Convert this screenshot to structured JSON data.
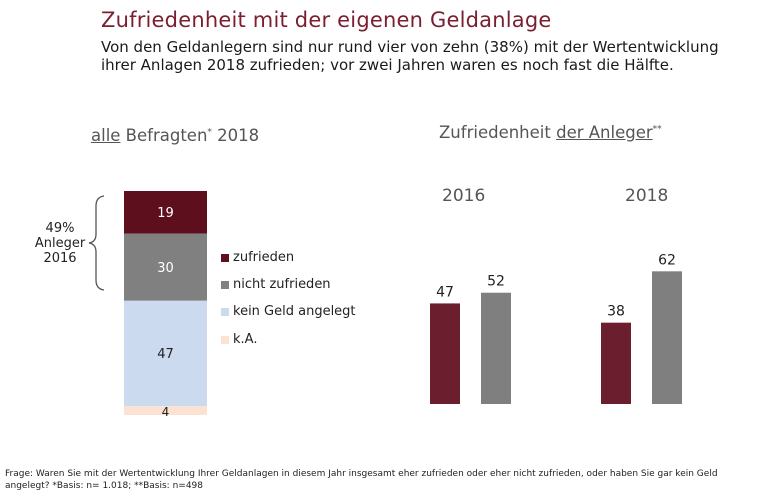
{
  "title": "Zufriedenheit mit der eigenen Geldanlage",
  "subtitle": "Von den Geldanlegern sind nur rund vier von zehn (38%) mit der Wertentwicklung ihrer Anlagen 2018 zufrieden; vor zwei Jahren waren es noch fast die Hälfte.",
  "left_header": {
    "underlined": "alle",
    "text": " Befragten",
    "mark": "*",
    "year": " 2018"
  },
  "right_header": {
    "text": "Zufriedenheit ",
    "underlined": "der Anleger",
    "mark": "**"
  },
  "anleger_note": "49% Anleger 2016",
  "footnote": "Frage: Waren Sie mit der Wertentwicklung Ihrer Geldanlagen in diesem Jahr insgesamt eher zufrieden oder eher nicht zufrieden, oder haben Sie gar kein Geld angelegt? *Basis: n= 1.018; **Basis: n=498",
  "colors": {
    "zufrieden": "#5e0f1e",
    "nicht_zufrieden": "#808080",
    "kein_geld": "#ccdaf0",
    "ka": "#fbe2d3",
    "grouped_zufrieden": "#6b1f2e",
    "grouped_nicht": "#7f7f7f",
    "title": "#7a1e30"
  },
  "chart_data": [
    {
      "type": "bar",
      "stacked": true,
      "categories": [
        "2018"
      ],
      "series": [
        {
          "name": "zufrieden",
          "values": [
            19
          ]
        },
        {
          "name": "nicht zufrieden",
          "values": [
            30
          ]
        },
        {
          "name": "kein Geld angelegt",
          "values": [
            47
          ]
        },
        {
          "name": "k.A.",
          "values": [
            4
          ]
        }
      ],
      "ylim": [
        0,
        100
      ],
      "legend": "right"
    },
    {
      "type": "bar",
      "categories": [
        "2016",
        "2018"
      ],
      "series": [
        {
          "values": [
            47,
            38
          ]
        },
        {
          "values": [
            52,
            62
          ]
        }
      ],
      "ylim": [
        0,
        100
      ]
    }
  ]
}
